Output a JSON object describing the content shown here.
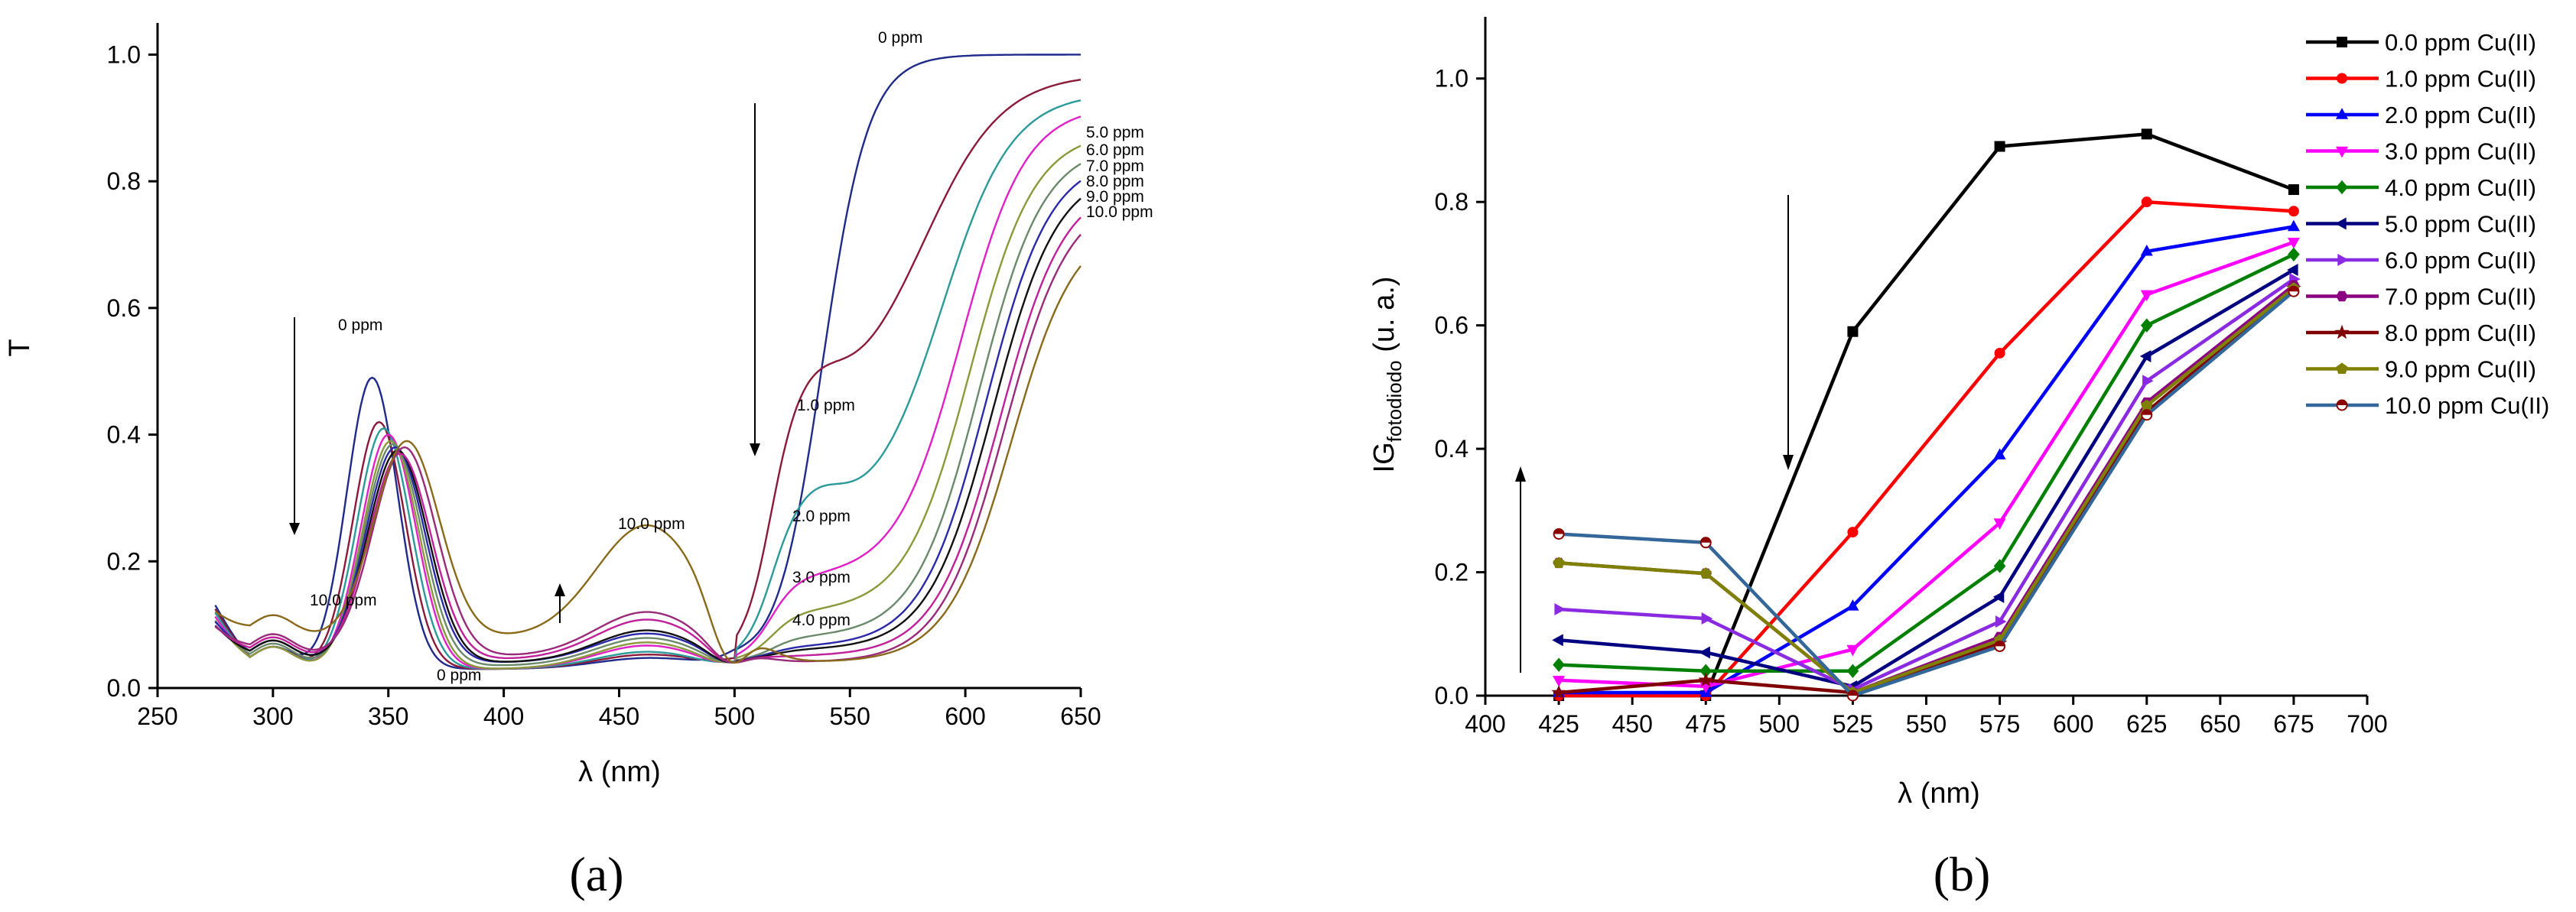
{
  "chart_data": [
    {
      "type": "line",
      "panel_label": "(a)",
      "xlabel": "λ (nm)",
      "ylabel": "T",
      "xlim": [
        250,
        650
      ],
      "ylim": [
        0,
        1.05
      ],
      "xticks": [
        250,
        300,
        350,
        400,
        450,
        500,
        550,
        600,
        650
      ],
      "yticks": [
        0.0,
        0.2,
        0.4,
        0.6,
        0.8,
        1.0
      ],
      "tick_labels_x": [
        "250",
        "300",
        "350",
        "400",
        "450",
        "500",
        "550",
        "600",
        "650"
      ],
      "tick_labels_y": [
        "0.0",
        "0.2",
        "0.4",
        "0.6",
        "0.8",
        "1.0"
      ],
      "annotations": [
        "0 ppm",
        "1.0 ppm",
        "2.0 ppm",
        "3.0 ppm",
        "4.0 ppm",
        "5.0 ppm",
        "6.0 ppm",
        "7.0 ppm",
        "8.0 ppm",
        "9.0 ppm",
        "10.0 ppm",
        "0 ppm",
        "10.0 ppm",
        "0 ppm",
        "10.0 ppm"
      ],
      "series": [
        {
          "name": "0 ppm",
          "color": "#1f2a8a",
          "uv_peak": 0.49,
          "uv_peak_nm": 343,
          "min_t": 0.03,
          "band_peak": 0.035,
          "plateau": 0.0,
          "edge_nm": 538,
          "edge_width": 10,
          "final": 1.0
        },
        {
          "name": "1.0 ppm",
          "color": "#8b1a3a",
          "uv_peak": 0.42,
          "uv_peak_nm": 346,
          "min_t": 0.03,
          "band_peak": 0.04,
          "plateau": 0.42,
          "edge_nm": 582,
          "edge_width": 17,
          "final": 0.97
        },
        {
          "name": "2.0 ppm",
          "color": "#2a9a9a",
          "uv_peak": 0.41,
          "uv_peak_nm": 348,
          "min_t": 0.03,
          "band_peak": 0.045,
          "plateau": 0.245,
          "edge_nm": 590,
          "edge_width": 15,
          "final": 0.94
        },
        {
          "name": "3.0 ppm",
          "color": "#e021c8",
          "uv_peak": 0.4,
          "uv_peak_nm": 350,
          "min_t": 0.03,
          "band_peak": 0.055,
          "plateau": 0.155,
          "edge_nm": 598,
          "edge_width": 14,
          "final": 0.92
        },
        {
          "name": "4.0 ppm",
          "color": "#8a9a3a",
          "uv_peak": 0.39,
          "uv_peak_nm": 351,
          "min_t": 0.03,
          "band_peak": 0.06,
          "plateau": 0.1,
          "edge_nm": 602,
          "edge_width": 14,
          "final": 0.88
        },
        {
          "name": "5.0 ppm",
          "color": "#6a8a6a",
          "uv_peak": 0.385,
          "uv_peak_nm": 352,
          "min_t": 0.035,
          "band_peak": 0.065,
          "plateau": 0.06,
          "edge_nm": 606,
          "edge_width": 14,
          "final": 0.86
        },
        {
          "name": "6.0 ppm",
          "color": "#2a2aaa",
          "uv_peak": 0.38,
          "uv_peak_nm": 353,
          "min_t": 0.04,
          "band_peak": 0.07,
          "plateau": 0.045,
          "edge_nm": 609,
          "edge_width": 14,
          "final": 0.84
        },
        {
          "name": "7.0 ppm",
          "color": "#111111",
          "uv_peak": 0.375,
          "uv_peak_nm": 354,
          "min_t": 0.04,
          "band_peak": 0.075,
          "plateau": 0.04,
          "edge_nm": 612,
          "edge_width": 14,
          "final": 0.82
        },
        {
          "name": "8.0 ppm",
          "color": "#c0209a",
          "uv_peak": 0.37,
          "uv_peak_nm": 355,
          "min_t": 0.045,
          "band_peak": 0.09,
          "plateau": 0.03,
          "edge_nm": 615,
          "edge_width": 14,
          "final": 0.8
        },
        {
          "name": "9.0 ppm",
          "color": "#9a2a7a",
          "uv_peak": 0.38,
          "uv_peak_nm": 357,
          "min_t": 0.05,
          "band_peak": 0.1,
          "plateau": 0.02,
          "edge_nm": 617,
          "edge_width": 14,
          "final": 0.78
        },
        {
          "name": "10.0 ppm",
          "color": "#8a6a1a",
          "uv_peak": 0.39,
          "uv_peak_nm": 358,
          "min_t": 0.08,
          "band_peak": 0.225,
          "plateau": 0.02,
          "edge_nm": 620,
          "edge_width": 14,
          "final": 0.74
        }
      ]
    },
    {
      "type": "line",
      "panel_label": "(b)",
      "xlabel": "λ (nm)",
      "ylabel": "IG",
      "ylabel_subscript": "fotodiodo",
      "ylabel_suffix": " (u. a.)",
      "xlim": [
        400,
        700
      ],
      "ylim": [
        0,
        1.1
      ],
      "xticks": [
        400,
        425,
        450,
        475,
        500,
        525,
        550,
        575,
        600,
        625,
        650,
        675,
        700
      ],
      "yticks": [
        0.0,
        0.2,
        0.4,
        0.6,
        0.8,
        1.0
      ],
      "tick_labels_x": [
        "400",
        "425",
        "450",
        "475",
        "500",
        "525",
        "550",
        "575",
        "600",
        "625",
        "650",
        "675",
        "700"
      ],
      "tick_labels_y": [
        "0.0",
        "0.2",
        "0.4",
        "0.6",
        "0.8",
        "1.0"
      ],
      "x": [
        425,
        475,
        525,
        575,
        625,
        675
      ],
      "legend_position": "top-right",
      "series": [
        {
          "name": "0.0 ppm Cu(II)",
          "color": "#000000",
          "marker": "square",
          "values": [
            0.0,
            0.0,
            0.59,
            0.89,
            0.91,
            0.82
          ]
        },
        {
          "name": "1.0 ppm Cu(II)",
          "color": "#ff0000",
          "marker": "circle",
          "values": [
            0.0,
            0.0,
            0.265,
            0.555,
            0.8,
            0.785
          ]
        },
        {
          "name": "2.0 ppm Cu(II)",
          "color": "#0000ff",
          "marker": "triangle-up",
          "values": [
            0.005,
            0.005,
            0.145,
            0.39,
            0.72,
            0.76
          ]
        },
        {
          "name": "3.0 ppm Cu(II)",
          "color": "#ff00ff",
          "marker": "triangle-down",
          "values": [
            0.025,
            0.015,
            0.075,
            0.28,
            0.65,
            0.735
          ]
        },
        {
          "name": "4.0 ppm Cu(II)",
          "color": "#008000",
          "marker": "diamond",
          "values": [
            0.05,
            0.04,
            0.04,
            0.21,
            0.6,
            0.715
          ]
        },
        {
          "name": "5.0 ppm Cu(II)",
          "color": "#000080",
          "marker": "triangle-left",
          "values": [
            0.09,
            0.07,
            0.015,
            0.16,
            0.55,
            0.69
          ]
        },
        {
          "name": "6.0 ppm Cu(II)",
          "color": "#8a2be2",
          "marker": "triangle-right",
          "values": [
            0.14,
            0.125,
            0.01,
            0.12,
            0.51,
            0.675
          ]
        },
        {
          "name": "7.0 ppm Cu(II)",
          "color": "#8b0080",
          "marker": "hexagon",
          "values": [
            0.215,
            0.198,
            0.005,
            0.095,
            0.475,
            0.665
          ]
        },
        {
          "name": "8.0 ppm Cu(II)",
          "color": "#800000",
          "marker": "star",
          "values": [
            0.005,
            0.025,
            0.005,
            0.085,
            0.46,
            0.66
          ]
        },
        {
          "name": "9.0 ppm Cu(II)",
          "color": "#808000",
          "marker": "pentagon",
          "values": [
            0.215,
            0.198,
            0.005,
            0.09,
            0.47,
            0.66
          ]
        },
        {
          "name": "10.0 ppm Cu(II)",
          "color": "#336699",
          "marker": "half-circle",
          "values": [
            0.262,
            0.248,
            0.0,
            0.08,
            0.455,
            0.655
          ]
        }
      ]
    }
  ]
}
